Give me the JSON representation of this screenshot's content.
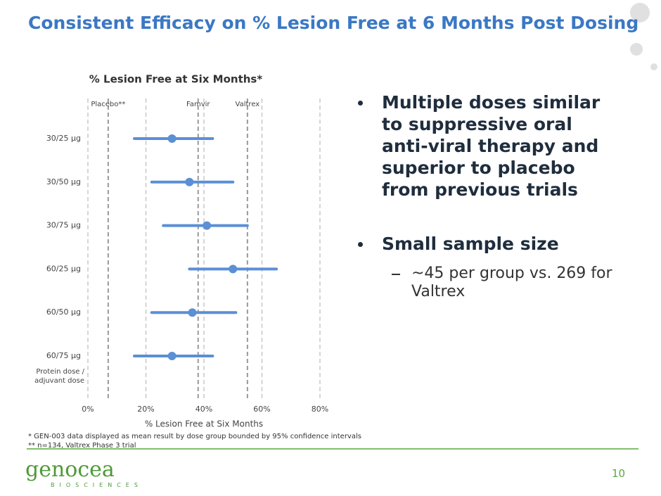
{
  "slide": {
    "title": "Consistent Efficacy on % Lesion Free at 6 Months Post Dosing",
    "bullets": [
      {
        "text": "Multiple doses similar to suppressive oral anti-viral therapy and superior to placebo from previous trials",
        "sub": []
      },
      {
        "text": "Small sample size",
        "sub": [
          "~45 per group vs. 269 for Valtrex"
        ]
      }
    ],
    "footnotes": [
      "* GEN-003 data displayed as mean result by dose group bounded by 95% confidence intervals",
      "** n=134, Valtrex Phase 3 trial"
    ],
    "page_number": "10",
    "logo": {
      "name": "genocea",
      "tagline": "BIOSCIENCES"
    }
  },
  "chart_data": {
    "type": "interval",
    "title": "% Lesion Free at Six Months*",
    "xlabel": "% Lesion Free at Six Months",
    "category_axis_label": "Protein dose / adjuvant dose",
    "categories": [
      "30/25 µg",
      "30/50 µg",
      "30/75 µg",
      "60/25 µg",
      "60/50 µg",
      "60/75 µg"
    ],
    "values": [
      29,
      35,
      41,
      50,
      36,
      29
    ],
    "lower": [
      16,
      22,
      26,
      35,
      22,
      16
    ],
    "upper": [
      43,
      50,
      55,
      65,
      51,
      43
    ],
    "color": "#5b8fd6",
    "references": [
      {
        "name": "Placebo**",
        "value": 7
      },
      {
        "name": "Famvir",
        "value": 38
      },
      {
        "name": "Valtrex",
        "value": 55
      }
    ],
    "xlim": [
      0,
      80
    ],
    "xticks": [
      {
        "value": 0,
        "label": "0%"
      },
      {
        "value": 20,
        "label": "20%"
      },
      {
        "value": 40,
        "label": "40%"
      },
      {
        "value": 60,
        "label": "60%"
      },
      {
        "value": 80,
        "label": "80%"
      }
    ],
    "grid": true
  }
}
